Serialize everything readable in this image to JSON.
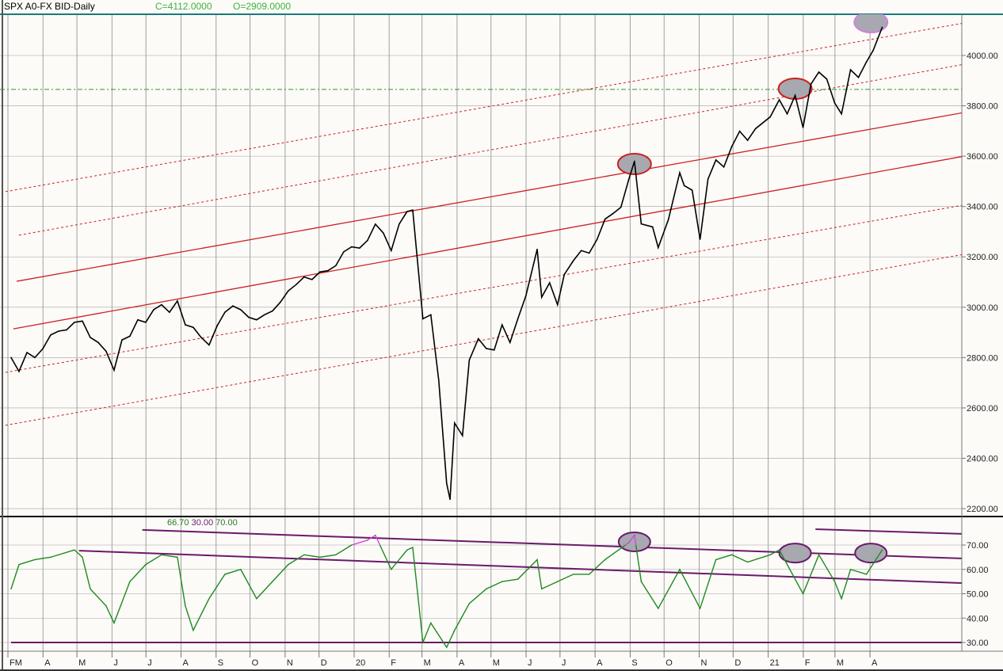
{
  "header": {
    "title": "SPX A0-FX BID-Daily",
    "close": "C=4112.0000",
    "open": "O=2909.0000"
  },
  "rsi_params": {
    "a": "66.70",
    "b": "30.00",
    "c": "70.00"
  },
  "colors": {
    "price": "#000000",
    "rsi": "#1e8a1e",
    "rsi_overbought": "#e040e0",
    "channel_solid": "#cc2020",
    "channel_dashed": "#cc2020",
    "rsi_trend": "#6a1a6a",
    "grid": "#a0a0a0",
    "top_line": "#1a7a7a",
    "hline": "#2a9a2a",
    "highlight_fill": "#a8a8b0"
  },
  "chart_data": [
    {
      "type": "line",
      "title": "SPX A0-FX BID-Daily",
      "ylim": [
        2200,
        4150
      ],
      "grid": true,
      "y_ticks": [
        "2200.00",
        "2400.00",
        "2600.00",
        "2800.00",
        "3000.00",
        "3200.00",
        "3400.00",
        "3600.00",
        "3800.00",
        "4000.00"
      ],
      "x_ticks": [
        {
          "label": "FM",
          "date": "2019-03-01"
        },
        {
          "label": "A",
          "date": "2019-04-01"
        },
        {
          "label": "M",
          "date": "2019-05-01"
        },
        {
          "label": "J",
          "date": "2019-06-01"
        },
        {
          "label": "J",
          "date": "2019-07-01"
        },
        {
          "label": "A",
          "date": "2019-08-01"
        },
        {
          "label": "S",
          "date": "2019-09-01"
        },
        {
          "label": "O",
          "date": "2019-10-01"
        },
        {
          "label": "N",
          "date": "2019-11-01"
        },
        {
          "label": "D",
          "date": "2019-12-01"
        },
        {
          "label": "20",
          "date": "2020-01-01"
        },
        {
          "label": "F",
          "date": "2020-02-01"
        },
        {
          "label": "M",
          "date": "2020-03-01"
        },
        {
          "label": "A",
          "date": "2020-04-01"
        },
        {
          "label": "M",
          "date": "2020-05-01"
        },
        {
          "label": "J",
          "date": "2020-06-01"
        },
        {
          "label": "J",
          "date": "2020-07-01"
        },
        {
          "label": "A",
          "date": "2020-08-01"
        },
        {
          "label": "S",
          "date": "2020-09-01"
        },
        {
          "label": "O",
          "date": "2020-10-01"
        },
        {
          "label": "N",
          "date": "2020-11-01"
        },
        {
          "label": "D",
          "date": "2020-12-01"
        },
        {
          "label": "21",
          "date": "2021-01-01"
        },
        {
          "label": "F",
          "date": "2021-02-01"
        },
        {
          "label": "M",
          "date": "2021-03-01"
        },
        {
          "label": "A",
          "date": "2021-04-01"
        }
      ],
      "series": [
        {
          "values": [
            [
              "2019-03-01",
              2800
            ],
            [
              "2019-03-08",
              2745
            ],
            [
              "2019-03-15",
              2820
            ],
            [
              "2019-03-22",
              2800
            ],
            [
              "2019-03-29",
              2835
            ],
            [
              "2019-04-05",
              2890
            ],
            [
              "2019-04-12",
              2905
            ],
            [
              "2019-04-19",
              2910
            ],
            [
              "2019-04-26",
              2940
            ],
            [
              "2019-05-03",
              2945
            ],
            [
              "2019-05-10",
              2880
            ],
            [
              "2019-05-17",
              2860
            ],
            [
              "2019-05-24",
              2825
            ],
            [
              "2019-05-31",
              2750
            ],
            [
              "2019-06-07",
              2870
            ],
            [
              "2019-06-14",
              2885
            ],
            [
              "2019-06-21",
              2950
            ],
            [
              "2019-06-28",
              2940
            ],
            [
              "2019-07-05",
              2990
            ],
            [
              "2019-07-12",
              3010
            ],
            [
              "2019-07-19",
              2980
            ],
            [
              "2019-07-26",
              3025
            ],
            [
              "2019-08-02",
              2930
            ],
            [
              "2019-08-09",
              2920
            ],
            [
              "2019-08-16",
              2880
            ],
            [
              "2019-08-23",
              2850
            ],
            [
              "2019-08-30",
              2925
            ],
            [
              "2019-09-06",
              2980
            ],
            [
              "2019-09-13",
              3005
            ],
            [
              "2019-09-20",
              2990
            ],
            [
              "2019-09-27",
              2960
            ],
            [
              "2019-10-04",
              2950
            ],
            [
              "2019-10-11",
              2970
            ],
            [
              "2019-10-18",
              2985
            ],
            [
              "2019-10-25",
              3020
            ],
            [
              "2019-11-01",
              3065
            ],
            [
              "2019-11-08",
              3090
            ],
            [
              "2019-11-15",
              3120
            ],
            [
              "2019-11-22",
              3110
            ],
            [
              "2019-11-29",
              3140
            ],
            [
              "2019-12-06",
              3145
            ],
            [
              "2019-12-13",
              3165
            ],
            [
              "2019-12-20",
              3220
            ],
            [
              "2019-12-27",
              3240
            ],
            [
              "2020-01-03",
              3235
            ],
            [
              "2020-01-10",
              3265
            ],
            [
              "2020-01-17",
              3330
            ],
            [
              "2020-01-24",
              3295
            ],
            [
              "2020-01-31",
              3225
            ],
            [
              "2020-02-07",
              3330
            ],
            [
              "2020-02-14",
              3380
            ],
            [
              "2020-02-19",
              3386
            ],
            [
              "2020-02-28",
              2954
            ],
            [
              "2020-03-06",
              2970
            ],
            [
              "2020-03-13",
              2710
            ],
            [
              "2020-03-20",
              2300
            ],
            [
              "2020-03-23",
              2237
            ],
            [
              "2020-03-27",
              2540
            ],
            [
              "2020-04-03",
              2490
            ],
            [
              "2020-04-09",
              2790
            ],
            [
              "2020-04-17",
              2875
            ],
            [
              "2020-04-24",
              2836
            ],
            [
              "2020-05-01",
              2830
            ],
            [
              "2020-05-08",
              2930
            ],
            [
              "2020-05-15",
              2860
            ],
            [
              "2020-05-22",
              2955
            ],
            [
              "2020-05-29",
              3045
            ],
            [
              "2020-06-08",
              3230
            ],
            [
              "2020-06-12",
              3040
            ],
            [
              "2020-06-19",
              3097
            ],
            [
              "2020-06-26",
              3010
            ],
            [
              "2020-07-02",
              3130
            ],
            [
              "2020-07-10",
              3185
            ],
            [
              "2020-07-17",
              3225
            ],
            [
              "2020-07-24",
              3215
            ],
            [
              "2020-07-31",
              3270
            ],
            [
              "2020-08-07",
              3350
            ],
            [
              "2020-08-14",
              3372
            ],
            [
              "2020-08-21",
              3397
            ],
            [
              "2020-08-28",
              3508
            ],
            [
              "2020-09-02",
              3580
            ],
            [
              "2020-09-08",
              3331
            ],
            [
              "2020-09-18",
              3319
            ],
            [
              "2020-09-23",
              3237
            ],
            [
              "2020-10-02",
              3348
            ],
            [
              "2020-10-12",
              3534
            ],
            [
              "2020-10-16",
              3483
            ],
            [
              "2020-10-23",
              3465
            ],
            [
              "2020-10-30",
              3270
            ],
            [
              "2020-11-06",
              3509
            ],
            [
              "2020-11-13",
              3585
            ],
            [
              "2020-11-20",
              3557
            ],
            [
              "2020-11-27",
              3638
            ],
            [
              "2020-12-04",
              3699
            ],
            [
              "2020-12-11",
              3663
            ],
            [
              "2020-12-18",
              3709
            ],
            [
              "2020-12-31",
              3756
            ],
            [
              "2021-01-08",
              3824
            ],
            [
              "2021-01-15",
              3768
            ],
            [
              "2021-01-22",
              3841
            ],
            [
              "2021-01-29",
              3714
            ],
            [
              "2021-02-05",
              3886
            ],
            [
              "2021-02-12",
              3934
            ],
            [
              "2021-02-19",
              3906
            ],
            [
              "2021-02-26",
              3811
            ],
            [
              "2021-03-04",
              3768
            ],
            [
              "2021-03-12",
              3943
            ],
            [
              "2021-03-19",
              3913
            ],
            [
              "2021-03-26",
              3974
            ],
            [
              "2021-04-01",
              4020
            ],
            [
              "2021-04-09",
              4112
            ]
          ]
        }
      ],
      "trendlines": [
        {
          "style": "solid",
          "from": [
            "2019-03-06",
            3103
          ],
          "to": [
            "2021-07-26",
            3802
          ]
        },
        {
          "style": "solid",
          "from": [
            "2019-03-03",
            2914
          ],
          "to": [
            "2021-07-26",
            3629
          ]
        },
        {
          "style": "dashed",
          "from": [
            "2019-02-24",
            3459
          ],
          "to": [
            "2021-07-26",
            4157
          ]
        },
        {
          "style": "dashed",
          "from": [
            "2019-03-08",
            3286
          ],
          "to": [
            "2021-07-26",
            3994
          ]
        },
        {
          "style": "dashed",
          "from": [
            "2019-02-24",
            2741
          ],
          "to": [
            "2021-07-26",
            3434
          ]
        },
        {
          "style": "dashed",
          "from": [
            "2019-02-24",
            2531
          ],
          "to": [
            "2021-07-26",
            3239
          ]
        }
      ],
      "hlines": [
        3865
      ],
      "highlights": [
        [
          "2020-09-02",
          3569
        ],
        [
          "2021-01-22",
          3868
        ],
        [
          "2021-03-30",
          4132
        ]
      ]
    },
    {
      "type": "line",
      "title": "RSI",
      "ylim": [
        26,
        80
      ],
      "grid": true,
      "y_ticks": [
        "30.00",
        "40.00",
        "50.00",
        "60.00",
        "70.00"
      ],
      "overbought": 70,
      "series": [
        {
          "values": [
            [
              "2019-03-01",
              52
            ],
            [
              "2019-03-08",
              62
            ],
            [
              "2019-03-22",
              64
            ],
            [
              "2019-04-05",
              65
            ],
            [
              "2019-04-26",
              68
            ],
            [
              "2019-05-03",
              65
            ],
            [
              "2019-05-10",
              52
            ],
            [
              "2019-05-24",
              45
            ],
            [
              "2019-05-31",
              38
            ],
            [
              "2019-06-14",
              55
            ],
            [
              "2019-06-28",
              62
            ],
            [
              "2019-07-12",
              66
            ],
            [
              "2019-07-26",
              65
            ],
            [
              "2019-08-02",
              45
            ],
            [
              "2019-08-09",
              35
            ],
            [
              "2019-08-23",
              48
            ],
            [
              "2019-09-06",
              58
            ],
            [
              "2019-09-20",
              60
            ],
            [
              "2019-10-04",
              48
            ],
            [
              "2019-10-18",
              55
            ],
            [
              "2019-11-01",
              62
            ],
            [
              "2019-11-15",
              66
            ],
            [
              "2019-11-29",
              65
            ],
            [
              "2019-12-13",
              66
            ],
            [
              "2019-12-27",
              70
            ],
            [
              "2020-01-10",
              72
            ],
            [
              "2020-01-17",
              74
            ],
            [
              "2020-01-31",
              60
            ],
            [
              "2020-02-14",
              68
            ],
            [
              "2020-02-19",
              69
            ],
            [
              "2020-02-28",
              30
            ],
            [
              "2020-03-06",
              38
            ],
            [
              "2020-03-20",
              28
            ],
            [
              "2020-03-27",
              35
            ],
            [
              "2020-04-09",
              46
            ],
            [
              "2020-04-24",
              52
            ],
            [
              "2020-05-08",
              55
            ],
            [
              "2020-05-22",
              56
            ],
            [
              "2020-06-08",
              64
            ],
            [
              "2020-06-12",
              52
            ],
            [
              "2020-06-26",
              55
            ],
            [
              "2020-07-10",
              58
            ],
            [
              "2020-07-24",
              58
            ],
            [
              "2020-08-07",
              64
            ],
            [
              "2020-08-28",
              71
            ],
            [
              "2020-09-02",
              74
            ],
            [
              "2020-09-08",
              55
            ],
            [
              "2020-09-23",
              44
            ],
            [
              "2020-10-12",
              60
            ],
            [
              "2020-10-30",
              44
            ],
            [
              "2020-11-13",
              64
            ],
            [
              "2020-11-27",
              66
            ],
            [
              "2020-12-11",
              63
            ],
            [
              "2020-12-31",
              66
            ],
            [
              "2021-01-08",
              68
            ],
            [
              "2021-01-29",
              50
            ],
            [
              "2021-02-12",
              66
            ],
            [
              "2021-02-26",
              55
            ],
            [
              "2021-03-04",
              48
            ],
            [
              "2021-03-12",
              60
            ],
            [
              "2021-03-26",
              58
            ],
            [
              "2021-04-09",
              68
            ]
          ]
        }
      ],
      "trendlines": [
        {
          "from": [
            "2019-06-25",
            76.2
          ],
          "to": [
            "2021-06-18",
            64.5
          ]
        },
        {
          "from": [
            "2019-04-30",
            67.7
          ],
          "to": [
            "2021-06-18",
            54.4
          ]
        },
        {
          "from": [
            "2021-02-09",
            76.5
          ],
          "to": [
            "2021-06-18",
            74.6
          ]
        },
        {
          "from": [
            "2019-03-01",
            30
          ],
          "to": [
            "2021-06-18",
            30
          ]
        }
      ],
      "highlights": [
        [
          "2020-09-02",
          71.3
        ],
        [
          "2021-01-22",
          66.7
        ],
        [
          "2021-03-30",
          66.7
        ]
      ]
    }
  ]
}
